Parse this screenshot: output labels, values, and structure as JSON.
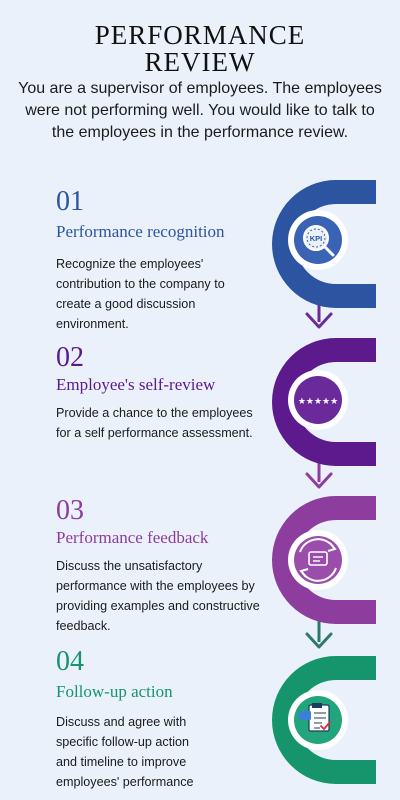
{
  "title_lines": [
    "PERFORMANCE",
    "REVIEW"
  ],
  "intro": "You are a supervisor of employees. The employees were not performing well. You would like to talk to the employees in the performance review.",
  "icons": {
    "kpi_label": "KPI",
    "stars": "★★★★★"
  },
  "steps": [
    {
      "number": "01",
      "title": "Performance recognition",
      "desc_lines": [
        "Recognize the employees'",
        "contribution to the company to",
        "create a good discussion",
        "environment."
      ],
      "color": "#2c54a0",
      "icon": "kpi-magnifier-icon"
    },
    {
      "number": "02",
      "title": "Employee's self-review",
      "desc_lines": [
        "Provide a chance to the employees",
        "for a self performance assessment."
      ],
      "color": "#5c1a8c",
      "icon": "five-star-rating-icon"
    },
    {
      "number": "03",
      "title": "Performance feedback",
      "desc_lines": [
        "Discuss the unsatisfactory",
        "performance with the employees by",
        "providing examples and constructive",
        "feedback."
      ],
      "color": "#8d3d9e",
      "icon": "feedback-cycle-icon"
    },
    {
      "number": "04",
      "title": "Follow-up action",
      "desc_lines": [
        "Discuss and agree with",
        "specific follow-up action",
        "and timeline to improve",
        "employees' performance"
      ],
      "color": "#16946c",
      "icon": "action-plan-icon"
    }
  ]
}
